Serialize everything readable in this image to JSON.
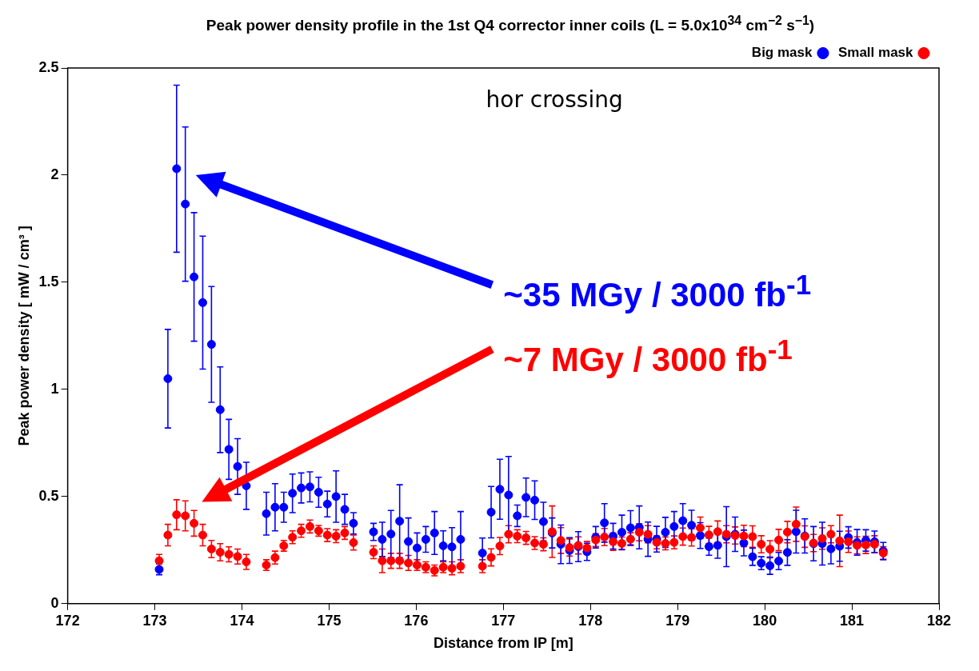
{
  "chart_data": {
    "type": "scatter",
    "title": "Peak power density profile in the 1st Q4 corrector inner coils (L = 5.0x10$^{34}$ cm$^{−2}$ s$^{−1}$)",
    "xlabel": "Distance from IP [m]",
    "ylabel": "Peak power density [ mW / cm³ ]",
    "x": [
      173.05,
      173.15,
      173.25,
      173.35,
      173.45,
      173.55,
      173.65,
      173.75,
      173.85,
      173.95,
      174.05,
      174.28,
      174.38,
      174.48,
      174.58,
      174.68,
      174.78,
      174.88,
      174.98,
      175.08,
      175.18,
      175.28,
      175.51,
      175.61,
      175.71,
      175.81,
      175.91,
      176.01,
      176.11,
      176.21,
      176.31,
      176.41,
      176.51,
      176.76,
      176.86,
      176.96,
      177.06,
      177.16,
      177.26,
      177.36,
      177.46,
      177.56,
      177.66,
      177.76,
      177.86,
      177.96,
      178.06,
      178.16,
      178.26,
      178.36,
      178.46,
      178.56,
      178.66,
      178.76,
      178.86,
      178.96,
      179.06,
      179.16,
      179.26,
      179.36,
      179.46,
      179.56,
      179.66,
      179.76,
      179.86,
      179.96,
      180.06,
      180.16,
      180.26,
      180.36,
      180.46,
      180.56,
      180.66,
      180.76,
      180.86,
      180.96,
      181.06,
      181.16,
      181.26,
      181.36
    ],
    "series": [
      {
        "name": "Small mask",
        "color": "#ff0000",
        "values": [
          0.2,
          0.32,
          0.415,
          0.41,
          0.375,
          0.32,
          0.255,
          0.24,
          0.23,
          0.22,
          0.195,
          0.18,
          0.215,
          0.27,
          0.31,
          0.34,
          0.36,
          0.34,
          0.32,
          0.315,
          0.33,
          0.285,
          0.24,
          0.2,
          0.2,
          0.2,
          0.19,
          0.18,
          0.17,
          0.155,
          0.17,
          0.165,
          0.175,
          0.175,
          0.216,
          0.269,
          0.324,
          0.315,
          0.307,
          0.283,
          0.277,
          0.336,
          0.295,
          0.262,
          0.272,
          0.26,
          0.297,
          0.311,
          0.289,
          0.281,
          0.301,
          0.333,
          0.324,
          0.286,
          0.281,
          0.286,
          0.313,
          0.309,
          0.354,
          0.321,
          0.336,
          0.324,
          0.318,
          0.316,
          0.313,
          0.277,
          0.254,
          0.297,
          0.334,
          0.371,
          0.313,
          0.283,
          0.304,
          0.324,
          0.293,
          0.289,
          0.272,
          0.274,
          0.277,
          0.236
        ],
        "errors": [
          0.03,
          0.05,
          0.07,
          0.07,
          0.06,
          0.05,
          0.04,
          0.04,
          0.035,
          0.035,
          0.035,
          0.025,
          0.03,
          0.025,
          0.03,
          0.03,
          0.03,
          0.025,
          0.03,
          0.03,
          0.03,
          0.035,
          0.03,
          0.055,
          0.035,
          0.035,
          0.035,
          0.025,
          0.025,
          0.025,
          0.025,
          0.03,
          0.03,
          0.03,
          0.04,
          0.04,
          0.04,
          0.03,
          0.03,
          0.03,
          0.03,
          0.12,
          0.06,
          0.04,
          0.04,
          0.03,
          0.03,
          0.04,
          0.04,
          0.03,
          0.03,
          0.04,
          0.04,
          0.03,
          0.03,
          0.03,
          0.04,
          0.04,
          0.05,
          0.04,
          0.05,
          0.04,
          0.04,
          0.05,
          0.05,
          0.04,
          0.04,
          0.05,
          0.05,
          0.08,
          0.05,
          0.04,
          0.05,
          0.04,
          0.12,
          0.05,
          0.04,
          0.04,
          0.04,
          0.03
        ]
      },
      {
        "name": "Big mask",
        "color": "#0000ff",
        "values": [
          0.16,
          1.05,
          2.03,
          1.865,
          1.525,
          1.405,
          1.21,
          0.905,
          0.72,
          0.64,
          0.55,
          0.42,
          0.45,
          0.45,
          0.515,
          0.54,
          0.545,
          0.52,
          0.465,
          0.5,
          0.44,
          0.375,
          0.335,
          0.3,
          0.325,
          0.385,
          0.29,
          0.26,
          0.3,
          0.33,
          0.27,
          0.265,
          0.3,
          0.236,
          0.427,
          0.534,
          0.507,
          0.41,
          0.496,
          0.483,
          0.383,
          0.33,
          0.277,
          0.248,
          0.266,
          0.242,
          0.31,
          0.377,
          0.315,
          0.333,
          0.354,
          0.356,
          0.301,
          0.301,
          0.333,
          0.36,
          0.387,
          0.366,
          0.318,
          0.266,
          0.272,
          0.313,
          0.324,
          0.283,
          0.219,
          0.189,
          0.177,
          0.199,
          0.239,
          0.336,
          0.316,
          0.28,
          0.28,
          0.256,
          0.268,
          0.309,
          0.286,
          0.295,
          0.289,
          0.246
        ],
        "errors": [
          0.025,
          0.23,
          0.39,
          0.36,
          0.3,
          0.31,
          0.27,
          0.2,
          0.14,
          0.13,
          0.11,
          0.1,
          0.11,
          0.07,
          0.09,
          0.07,
          0.07,
          0.07,
          0.06,
          0.12,
          0.07,
          0.05,
          0.04,
          0.08,
          0.11,
          0.17,
          0.11,
          0.07,
          0.06,
          0.1,
          0.07,
          0.09,
          0.13,
          0.07,
          0.12,
          0.14,
          0.18,
          0.05,
          0.09,
          0.09,
          0.09,
          0.07,
          0.09,
          0.06,
          0.07,
          0.04,
          0.05,
          0.09,
          0.06,
          0.08,
          0.08,
          0.1,
          0.08,
          0.06,
          0.07,
          0.07,
          0.08,
          0.07,
          0.06,
          0.04,
          0.06,
          0.14,
          0.08,
          0.06,
          0.04,
          0.03,
          0.04,
          0.04,
          0.06,
          0.1,
          0.08,
          0.08,
          0.1,
          0.07,
          0.07,
          0.05,
          0.06,
          0.05,
          0.05,
          0.04
        ]
      }
    ],
    "xlim": [
      172,
      182
    ],
    "xticks": [
      172,
      173,
      174,
      175,
      176,
      177,
      178,
      179,
      180,
      181,
      182
    ],
    "ylim": [
      0,
      2.5
    ],
    "yticks": [
      0,
      0.5,
      1,
      1.5,
      2,
      2.5
    ],
    "grid": false,
    "legend": "top right",
    "marker": "circle",
    "annotations": [
      "hor crossing",
      "~35 MGy / 3000 fb$^{-1}$",
      "~7 MGy / 3000 fb$^{-1}$"
    ]
  }
}
